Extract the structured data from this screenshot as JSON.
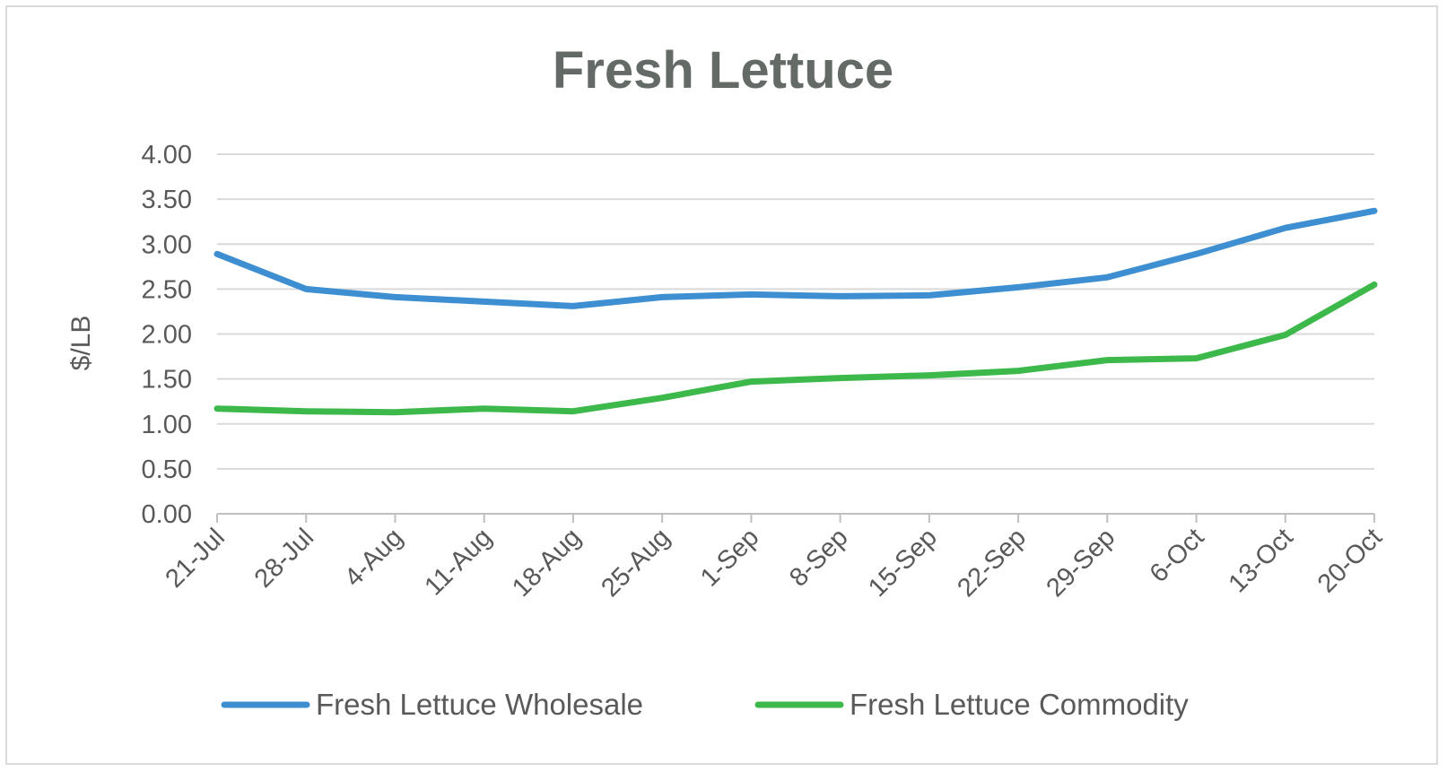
{
  "chart_data": {
    "type": "line",
    "title": "Fresh Lettuce",
    "xlabel": "",
    "ylabel": "$/LB",
    "categories": [
      "21-Jul",
      "28-Jul",
      "4-Aug",
      "11-Aug",
      "18-Aug",
      "25-Aug",
      "1-Sep",
      "8-Sep",
      "15-Sep",
      "22-Sep",
      "29-Sep",
      "6-Oct",
      "13-Oct",
      "20-Oct"
    ],
    "ylim": [
      0,
      4
    ],
    "yticks": [
      "0.00",
      "0.50",
      "1.00",
      "1.50",
      "2.00",
      "2.50",
      "3.00",
      "3.50",
      "4.00"
    ],
    "grid": true,
    "legend_position": "bottom",
    "series": [
      {
        "name": "Fresh Lettuce Wholesale",
        "color": "#3d8fd1",
        "values": [
          2.89,
          2.5,
          2.41,
          2.36,
          2.31,
          2.41,
          2.44,
          2.42,
          2.43,
          2.52,
          2.63,
          2.89,
          3.18,
          3.37
        ]
      },
      {
        "name": "Fresh Lettuce Commodity",
        "color": "#3db94b",
        "values": [
          1.17,
          1.14,
          1.13,
          1.17,
          1.14,
          1.29,
          1.47,
          1.51,
          1.54,
          1.59,
          1.71,
          1.73,
          1.99,
          2.55
        ]
      }
    ],
    "colors": {
      "text": "#595959",
      "title": "#646a66",
      "grid": "#d9d9d9",
      "axis": "#bfbfbf"
    }
  }
}
